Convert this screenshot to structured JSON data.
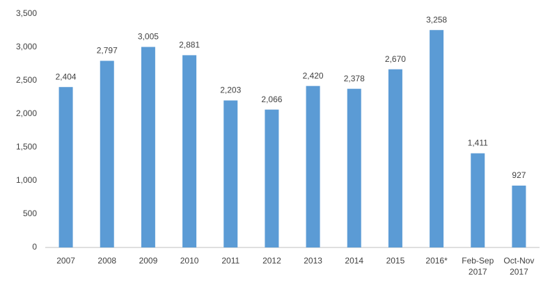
{
  "chart_data": {
    "type": "bar",
    "categories": [
      "2007",
      "2008",
      "2009",
      "2010",
      "2011",
      "2012",
      "2013",
      "2014",
      "2015",
      "2016*",
      "Feb-Sep 2017",
      "Oct-Nov 2017"
    ],
    "values": [
      2404,
      2797,
      3005,
      2881,
      2203,
      2066,
      2420,
      2378,
      2670,
      3258,
      1411,
      927
    ],
    "value_labels": [
      "2,404",
      "2,797",
      "3,005",
      "2,881",
      "2,203",
      "2,066",
      "2,420",
      "2,378",
      "2,670",
      "3,258",
      "1,411",
      "927"
    ],
    "color": "#5b9bd5",
    "ylim": [
      0,
      3500
    ],
    "yticks": [
      0,
      500,
      {
        "value": 1000,
        "label": "1,000"
      },
      {
        "value": 1500,
        "label": "1,500"
      },
      {
        "value": 2000,
        "label": "2,000"
      },
      {
        "value": 2500,
        "label": "2,500"
      },
      {
        "value": 3000,
        "label": "3,000"
      },
      {
        "value": 3500,
        "label": "3,500"
      }
    ],
    "grid": false
  }
}
